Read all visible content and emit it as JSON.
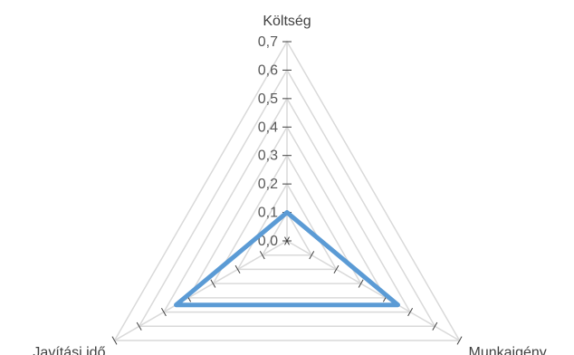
{
  "chart_data": {
    "type": "radar",
    "categories": [
      "Költség",
      "Munkaigény",
      "Javítási idő"
    ],
    "series": [
      {
        "values": [
          0.1,
          0.45,
          0.45
        ],
        "color": "#5b9bd5"
      }
    ],
    "radial_ticks": [
      "0,0",
      "0,1",
      "0,2",
      "0,3",
      "0,4",
      "0,5",
      "0,6",
      "0,7"
    ],
    "rlim": [
      0,
      0.7
    ],
    "grid": true,
    "legend": "none",
    "title": ""
  }
}
